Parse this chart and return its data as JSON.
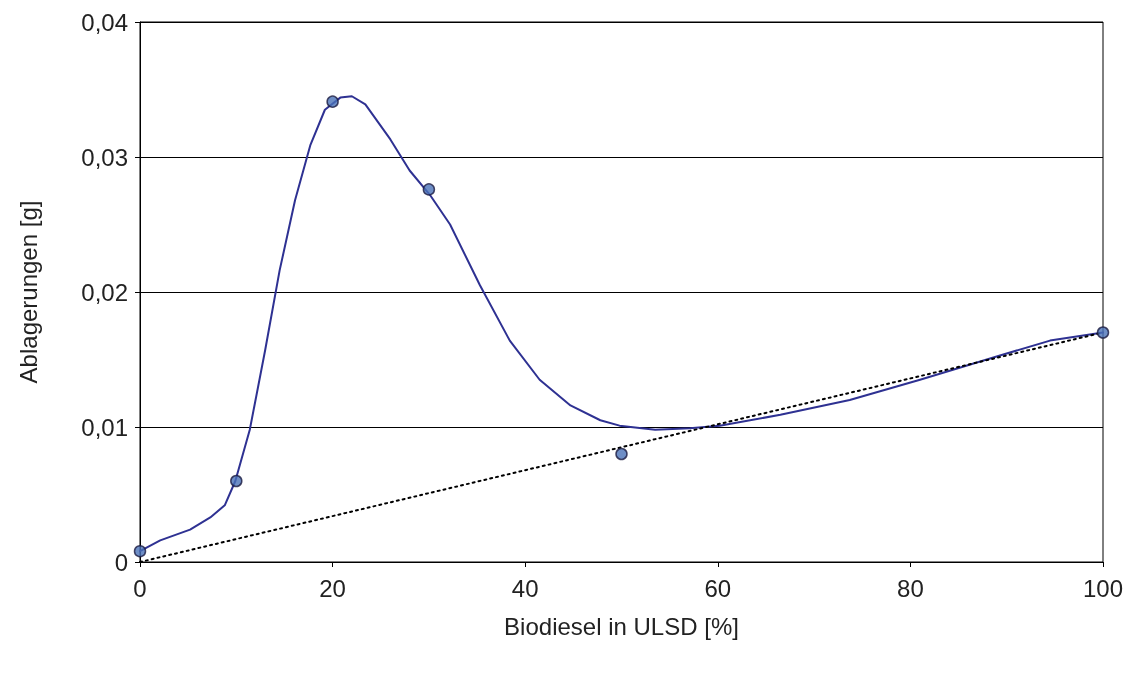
{
  "chart_data": {
    "type": "scatter",
    "xlabel": "Biodiesel in ULSD [%]",
    "ylabel": "Ablagerungen [g]",
    "xlim": [
      0,
      100
    ],
    "xticks": [
      0,
      20,
      40,
      60,
      80,
      100
    ],
    "ylim": [
      0,
      0.04
    ],
    "yticks": [
      0,
      {
        "value": 0.01,
        "label": "0,01"
      },
      {
        "value": 0.02,
        "label": "0,02"
      },
      {
        "value": 0.03,
        "label": "0,03"
      },
      {
        "value": 0.04,
        "label": "0,04"
      }
    ],
    "grid": "y",
    "series": [
      {
        "type": "line",
        "color": "#2e3192",
        "marker": "none",
        "line_style": "solid",
        "x": [
          0,
          2.1,
          5.2,
          7.3,
          8.8,
          9.9,
          11.4,
          13.0,
          14.5,
          16.1,
          17.7,
          19.2,
          20.8,
          22.0,
          23.4,
          26.0,
          28.0,
          30.1,
          32.2,
          35.3,
          38.4,
          41.5,
          44.7,
          47.8,
          49.8,
          53.5,
          57.1,
          60.2,
          66.5,
          73.7,
          81.0,
          89.3,
          94.5,
          100
        ],
        "values": [
          0.0008,
          0.0016,
          0.0024,
          0.0033,
          0.0042,
          0.006,
          0.0098,
          0.0157,
          0.0216,
          0.0268,
          0.0309,
          0.0335,
          0.0344,
          0.0345,
          0.0339,
          0.0313,
          0.029,
          0.0272,
          0.025,
          0.0205,
          0.0164,
          0.0135,
          0.0116,
          0.0105,
          0.0101,
          0.0098,
          0.0099,
          0.0101,
          0.0109,
          0.012,
          0.0135,
          0.0153,
          0.0164,
          0.017
        ]
      },
      {
        "type": "line",
        "color": "#000000",
        "marker": "none",
        "line_style": "dotted",
        "x": [
          0,
          100
        ],
        "values": [
          0,
          0.017
        ]
      },
      {
        "color": "#4a72b8",
        "marker": "circle",
        "x": [
          0,
          10,
          20,
          30,
          50,
          100
        ],
        "values": [
          0.0008,
          0.006,
          0.0341,
          0.0276,
          0.008,
          0.017
        ]
      }
    ]
  }
}
